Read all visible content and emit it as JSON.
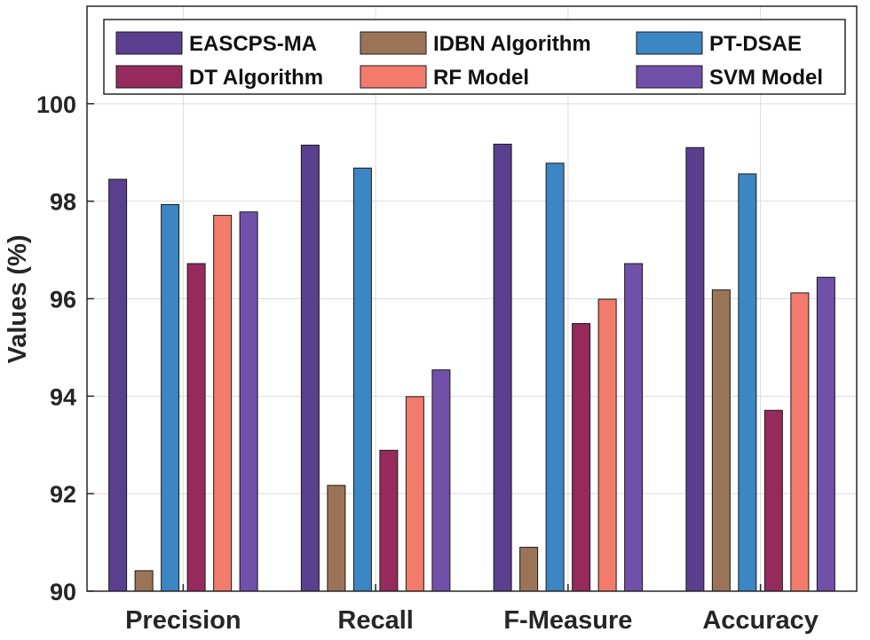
{
  "chart_data": {
    "type": "bar",
    "title": "",
    "xlabel": "",
    "ylabel": "Values (%)",
    "ylim": [
      90,
      102
    ],
    "yticks": [
      90,
      92,
      94,
      96,
      98,
      100
    ],
    "grid": true,
    "legend_position": "top",
    "categories": [
      "Precision",
      "Recall",
      "F-Measure",
      "Accuracy"
    ],
    "series": [
      {
        "name": "EASCPS-MA",
        "color": "#5b3f8f",
        "values": [
          98.45,
          99.15,
          99.17,
          99.1
        ]
      },
      {
        "name": "IDBN Algorithm",
        "color": "#9b7457",
        "values": [
          90.42,
          92.17,
          90.9,
          96.18
        ]
      },
      {
        "name": "PT-DSAE",
        "color": "#3c86c4",
        "values": [
          97.93,
          98.68,
          98.78,
          98.56
        ]
      },
      {
        "name": "DT Algorithm",
        "color": "#962a5c",
        "values": [
          96.72,
          92.89,
          95.49,
          93.71
        ]
      },
      {
        "name": "RF Model",
        "color": "#f27b6c",
        "values": [
          97.71,
          93.99,
          95.99,
          96.12
        ]
      },
      {
        "name": "SVM Model",
        "color": "#7050a8",
        "values": [
          97.78,
          94.54,
          96.72,
          96.44
        ]
      }
    ]
  }
}
